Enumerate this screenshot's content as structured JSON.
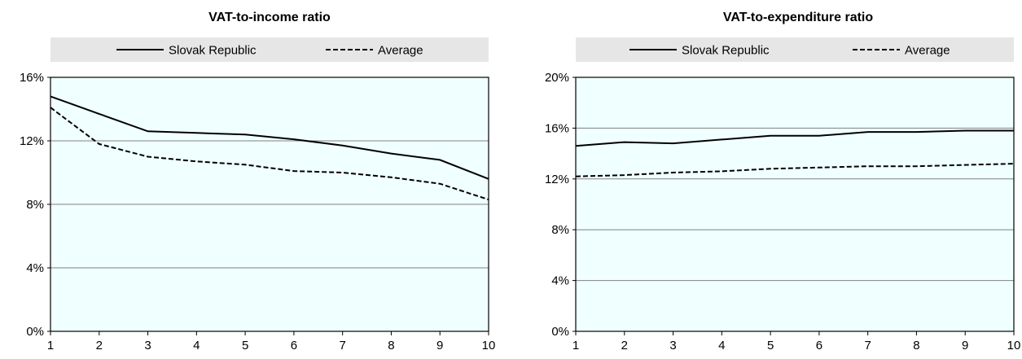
{
  "chart_data": [
    {
      "type": "line",
      "title": "VAT-to-income ratio",
      "xlabel": "",
      "ylabel": "",
      "x": [
        1,
        2,
        3,
        4,
        5,
        6,
        7,
        8,
        9,
        10
      ],
      "x_tick_labels": [
        "1",
        "2",
        "3",
        "4",
        "5",
        "6",
        "7",
        "8",
        "9",
        "10"
      ],
      "ylim": [
        0,
        0.16
      ],
      "y_ticks": [
        0,
        0.04,
        0.08,
        0.12,
        0.16
      ],
      "y_tick_labels": [
        "0%",
        "4%",
        "8%",
        "12%",
        "16%"
      ],
      "legend_position": "top",
      "grid": true,
      "plot_background": "#f0ffff",
      "series": [
        {
          "name": "Slovak Republic",
          "style": "solid",
          "color": "#000000",
          "values": [
            0.148,
            0.137,
            0.126,
            0.125,
            0.124,
            0.121,
            0.117,
            0.112,
            0.108,
            0.096
          ]
        },
        {
          "name": "Average",
          "style": "dashed",
          "color": "#000000",
          "values": [
            0.141,
            0.118,
            0.11,
            0.107,
            0.105,
            0.101,
            0.1,
            0.097,
            0.093,
            0.083
          ]
        }
      ]
    },
    {
      "type": "line",
      "title": "VAT-to-expenditure ratio",
      "xlabel": "",
      "ylabel": "",
      "x": [
        1,
        2,
        3,
        4,
        5,
        6,
        7,
        8,
        9,
        10
      ],
      "x_tick_labels": [
        "1",
        "2",
        "3",
        "4",
        "5",
        "6",
        "7",
        "8",
        "9",
        "10"
      ],
      "ylim": [
        0,
        0.2
      ],
      "y_ticks": [
        0,
        0.04,
        0.08,
        0.12,
        0.16,
        0.2
      ],
      "y_tick_labels": [
        "0%",
        "4%",
        "8%",
        "12%",
        "16%",
        "20%"
      ],
      "legend_position": "top",
      "grid": true,
      "plot_background": "#f0ffff",
      "series": [
        {
          "name": "Slovak Republic",
          "style": "solid",
          "color": "#000000",
          "values": [
            0.146,
            0.149,
            0.148,
            0.151,
            0.154,
            0.154,
            0.157,
            0.157,
            0.158,
            0.158
          ]
        },
        {
          "name": "Average",
          "style": "dashed",
          "color": "#000000",
          "values": [
            0.122,
            0.123,
            0.125,
            0.126,
            0.128,
            0.129,
            0.13,
            0.13,
            0.131,
            0.132
          ]
        }
      ]
    }
  ]
}
